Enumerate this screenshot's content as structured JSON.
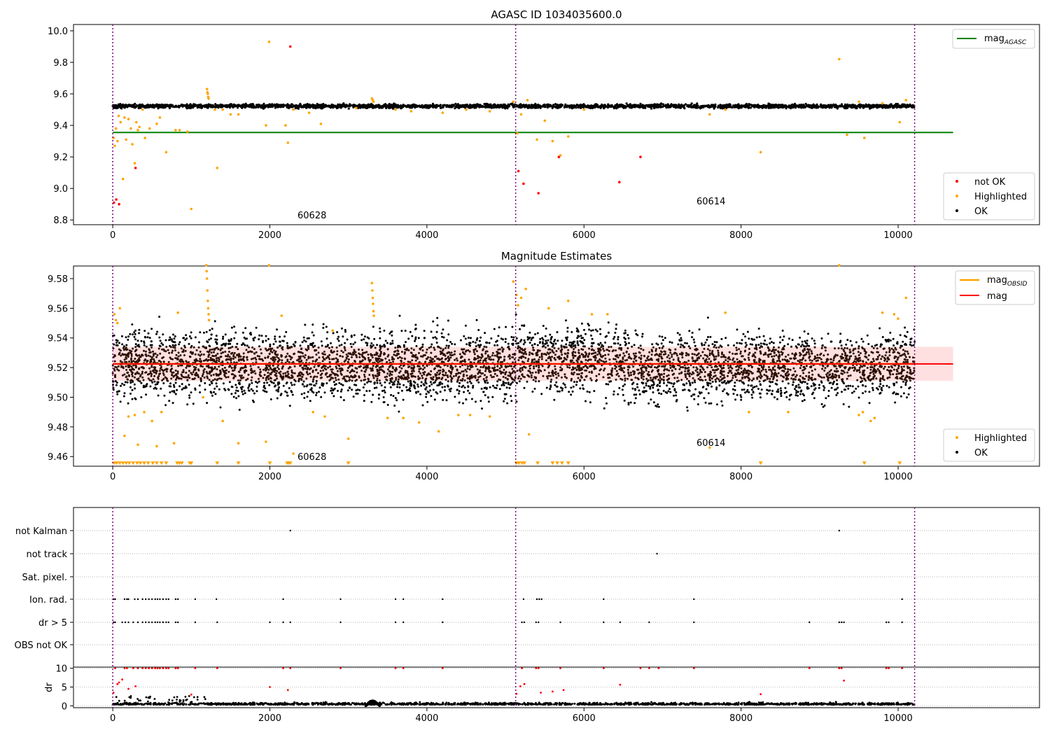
{
  "chart_data": [
    {
      "type": "scatter",
      "title": "AGASC ID 1034035600.0",
      "xlim": [
        -500,
        11800
      ],
      "ylim": [
        8.77,
        10.04
      ],
      "x_ticks": [
        "0",
        "2000",
        "4000",
        "6000",
        "8000",
        "10000"
      ],
      "y_ticks": [
        "10.0",
        "9.8",
        "9.6",
        "9.4",
        "9.2",
        "9.0",
        "8.8"
      ],
      "x_tick_values": [
        0,
        2000,
        4000,
        6000,
        8000,
        10000
      ],
      "y_tick_values": [
        10.0,
        9.8,
        9.6,
        9.4,
        9.2,
        9.0,
        8.8
      ],
      "obsid_boundaries": [
        0,
        5130,
        10210
      ],
      "obsid_labels": [
        {
          "text": "60628",
          "x": 2550,
          "y": 8.83
        },
        {
          "text": "60614",
          "x": 7650,
          "y": 8.92
        }
      ],
      "hline": {
        "name": "mag_AGASC",
        "y": 9.355,
        "x_range": [
          0,
          10700
        ],
        "color": "#008000"
      },
      "ok_band": {
        "y_center": 9.522,
        "y_spread": 0.012,
        "x_range": [
          0,
          10210
        ],
        "color": "#000000"
      },
      "series": [
        {
          "name": "not OK",
          "color": "#ff0000",
          "x": [
            15,
            45,
            80,
            290,
            2260,
            5165,
            5230,
            5420,
            5680,
            6450,
            6720
          ],
          "y": [
            8.91,
            8.93,
            8.9,
            9.13,
            9.9,
            9.11,
            9.03,
            8.97,
            9.2,
            9.04,
            9.2
          ]
        },
        {
          "name": "Highlighted",
          "color": "#ffa500",
          "x": [
            10,
            25,
            40,
            60,
            75,
            100,
            130,
            150,
            170,
            200,
            230,
            250,
            280,
            300,
            320,
            340,
            380,
            410,
            470,
            560,
            600,
            680,
            800,
            850,
            950,
            1000,
            1200,
            1205,
            1210,
            1215,
            1220,
            1300,
            1330,
            1400,
            1500,
            1600,
            1950,
            1990,
            2200,
            2230,
            2300,
            2500,
            2650,
            3100,
            3300,
            3310,
            3320,
            3600,
            3800,
            4200,
            4500,
            4800,
            5100,
            5150,
            5200,
            5280,
            5400,
            5500,
            5600,
            5700,
            5800,
            6000,
            7600,
            7800,
            8250,
            9250,
            9350,
            9500,
            9570,
            9800,
            10020,
            10100
          ],
          "y": [
            9.32,
            9.27,
            9.38,
            9.3,
            9.46,
            9.42,
            9.06,
            9.45,
            9.31,
            9.44,
            9.38,
            9.28,
            9.16,
            9.42,
            9.37,
            9.39,
            9.5,
            9.32,
            9.38,
            9.41,
            9.45,
            9.23,
            9.37,
            9.37,
            9.36,
            8.87,
            9.63,
            9.61,
            9.6,
            9.58,
            9.57,
            9.5,
            9.13,
            9.5,
            9.47,
            9.47,
            9.4,
            9.93,
            9.4,
            9.29,
            9.5,
            9.48,
            9.41,
            9.51,
            9.57,
            9.56,
            9.55,
            9.5,
            9.49,
            9.48,
            9.5,
            9.49,
            9.55,
            9.35,
            9.47,
            9.56,
            9.31,
            9.43,
            9.3,
            9.21,
            9.33,
            9.5,
            9.47,
            9.5,
            9.23,
            9.82,
            9.34,
            9.55,
            9.32,
            9.54,
            9.42,
            9.56
          ]
        }
      ],
      "legend_line": {
        "position": "top-right",
        "entries": [
          {
            "label": "mag",
            "sub": "AGASC"
          }
        ]
      },
      "legend_points": {
        "position": "bottom-right",
        "entries": [
          "not OK",
          "Highlighted",
          "OK"
        ]
      }
    },
    {
      "type": "scatter",
      "title": "Magnitude Estimates",
      "xlim": [
        -500,
        11800
      ],
      "ylim": [
        9.4535,
        9.5885
      ],
      "x_ticks": [
        "0",
        "2000",
        "4000",
        "6000",
        "8000",
        "10000"
      ],
      "y_ticks": [
        "9.58",
        "9.56",
        "9.54",
        "9.52",
        "9.50",
        "9.48",
        "9.46"
      ],
      "x_tick_values": [
        0,
        2000,
        4000,
        6000,
        8000,
        10000
      ],
      "y_tick_values": [
        9.58,
        9.56,
        9.54,
        9.52,
        9.5,
        9.48,
        9.46
      ],
      "obsid_boundaries": [
        0,
        5130,
        10210
      ],
      "obsid_labels": [
        {
          "text": "60628",
          "x": 2550,
          "y": 9.461
        },
        {
          "text": "60614",
          "x": 7650,
          "y": 9.47
        }
      ],
      "hlines": [
        {
          "name": "mag_OBSID",
          "y": 9.5225,
          "x_range": [
            0,
            5130
          ],
          "color": "#ffa500"
        },
        {
          "name": "mag_OBSID",
          "y": 9.5225,
          "x_range": [
            5130,
            10210
          ],
          "color": "#ffa500"
        },
        {
          "name": "mag",
          "y": 9.5225,
          "x_range": [
            0,
            10700
          ],
          "color": "#ff0000"
        }
      ],
      "band": {
        "y_range": [
          9.511,
          9.534
        ],
        "x_range": [
          0,
          10700
        ],
        "color": "#ff0000",
        "alpha": 0.12
      },
      "ok_band": {
        "y_center": 9.522,
        "y_spread": 0.011,
        "x_range": [
          0,
          10210
        ],
        "color": "#000000"
      },
      "series": [
        {
          "name": "Highlighted",
          "color": "#ffa500",
          "x": [
            20,
            40,
            60,
            90,
            150,
            200,
            280,
            320,
            400,
            500,
            560,
            620,
            780,
            830,
            1150,
            1190,
            1195,
            1200,
            1205,
            1210,
            1215,
            1220,
            1225,
            1400,
            1600,
            1950,
            1990,
            2150,
            2300,
            2550,
            2700,
            2800,
            3000,
            3300,
            3305,
            3310,
            3315,
            3320,
            3325,
            3500,
            3700,
            3900,
            4150,
            4400,
            4550,
            4800,
            5100,
            5140,
            5160,
            5200,
            5260,
            5300,
            5550,
            5800,
            6100,
            6300,
            7600,
            7800,
            8100,
            8600,
            9250,
            9500,
            9550,
            9650,
            9700,
            9800,
            9950,
            10000,
            10100
          ],
          "y": [
            9.556,
            9.552,
            9.55,
            9.56,
            9.474,
            9.487,
            9.488,
            9.468,
            9.49,
            9.484,
            9.467,
            9.49,
            9.469,
            9.557,
            9.5,
            9.589,
            9.585,
            9.58,
            9.572,
            9.565,
            9.56,
            9.556,
            9.552,
            9.484,
            9.469,
            9.47,
            9.589,
            9.555,
            9.462,
            9.49,
            9.487,
            9.545,
            9.472,
            9.577,
            9.572,
            9.567,
            9.563,
            9.558,
            9.555,
            9.486,
            9.486,
            9.483,
            9.477,
            9.488,
            9.488,
            9.487,
            9.578,
            9.569,
            9.562,
            9.567,
            9.573,
            9.475,
            9.56,
            9.565,
            9.556,
            9.556,
            9.466,
            9.557,
            9.49,
            9.49,
            9.589,
            9.488,
            9.49,
            9.484,
            9.486,
            9.557,
            9.556,
            9.553,
            9.567
          ]
        },
        {
          "name": "Highlighted (below range)",
          "color": "#ffa500",
          "marker": "triangle-down",
          "y": 9.4555,
          "x": [
            20,
            50,
            90,
            130,
            170,
            210,
            260,
            310,
            350,
            400,
            450,
            510,
            560,
            620,
            680,
            820,
            850,
            880,
            980,
            1000,
            1330,
            1600,
            2000,
            2220,
            2240,
            2260,
            3000,
            5140,
            5170,
            5210,
            5240,
            5410,
            5600,
            5660,
            5720,
            5800,
            8250,
            9570,
            10020
          ]
        }
      ],
      "legend_line": {
        "position": "top-right",
        "entries": [
          {
            "label": "mag",
            "sub": "OBSID"
          },
          {
            "label": "mag",
            "sub": ""
          }
        ]
      },
      "legend_points": {
        "position": "bottom-right",
        "entries": [
          "Highlighted",
          "OK"
        ]
      }
    },
    {
      "type": "scatter",
      "xlim": [
        -500,
        11800
      ],
      "x_ticks": [
        "0",
        "2000",
        "4000",
        "6000",
        "8000",
        "10000"
      ],
      "x_tick_values": [
        0,
        2000,
        4000,
        6000,
        8000,
        10000
      ],
      "obsid_boundaries": [
        0,
        5130,
        10210
      ],
      "flag_rows": [
        "not Kalman",
        "not track",
        "Sat. pixel.",
        "Ion. rad.",
        "dr > 5",
        "OBS not OK"
      ],
      "flags": {
        "not Kalman": [
          2260,
          9250
        ],
        "not track": [
          6930
        ],
        "Sat. pixel.": [],
        "Ion. rad.": [
          10,
          30,
          150,
          180,
          200,
          280,
          320,
          380,
          420,
          460,
          500,
          540,
          570,
          600,
          640,
          680,
          710,
          800,
          830,
          1050,
          1320,
          2170,
          2900,
          3600,
          3700,
          4200,
          5230,
          5400,
          5430,
          5460,
          6250,
          7400,
          10050
        ],
        "dr > 5": [
          10,
          30,
          120,
          160,
          200,
          260,
          320,
          380,
          420,
          460,
          500,
          540,
          570,
          600,
          640,
          680,
          710,
          800,
          830,
          1050,
          1330,
          2000,
          2170,
          2260,
          2900,
          3600,
          3700,
          4200,
          5210,
          5240,
          5390,
          5420,
          5700,
          6250,
          6460,
          6830,
          7400,
          8870,
          9250,
          9280,
          9310,
          9850,
          9880,
          10050
        ],
        "OBS not OK": []
      },
      "dr": {
        "ylabel": "dr",
        "ylim": [
          -0.5,
          10.3
        ],
        "y_ticks": [
          "10",
          "5",
          "0"
        ],
        "y_tick_values": [
          10,
          5,
          0
        ],
        "red_points_x": [
          10,
          30,
          60,
          80,
          120,
          150,
          180,
          200,
          260,
          290,
          320,
          380,
          420,
          460,
          500,
          540,
          570,
          600,
          640,
          680,
          710,
          800,
          830,
          1000,
          1050,
          1330,
          2000,
          2170,
          2230,
          2260,
          2900,
          3600,
          3700,
          4200,
          5140,
          5190,
          5210,
          5240,
          5390,
          5420,
          5450,
          5600,
          5700,
          5740,
          6250,
          6460,
          6720,
          6830,
          6950,
          7400,
          8250,
          8870,
          9250,
          9280,
          9310,
          9850,
          9880,
          10050
        ],
        "red_points_y": [
          3.5,
          10,
          5.8,
          6.2,
          7.0,
          10,
          10,
          4.5,
          10,
          5.2,
          10,
          10,
          10,
          10,
          10,
          10,
          10,
          10,
          10,
          10,
          10,
          10,
          10,
          3.0,
          10,
          10,
          5.0,
          10,
          4.2,
          10,
          10,
          10,
          10,
          10,
          3.2,
          5.2,
          10,
          5.8,
          10,
          10,
          3.5,
          3.8,
          10,
          4.2,
          10,
          5.6,
          10,
          10,
          10,
          10,
          3.1,
          10,
          10,
          10,
          6.7,
          10,
          10,
          10
        ],
        "bulk": {
          "x_range": [
            0,
            10210
          ],
          "y_center": 0.3,
          "y_spread": 0.25
        },
        "bump": {
          "x_range": [
            3220,
            3400
          ],
          "y_peak": 1.4
        }
      }
    }
  ]
}
